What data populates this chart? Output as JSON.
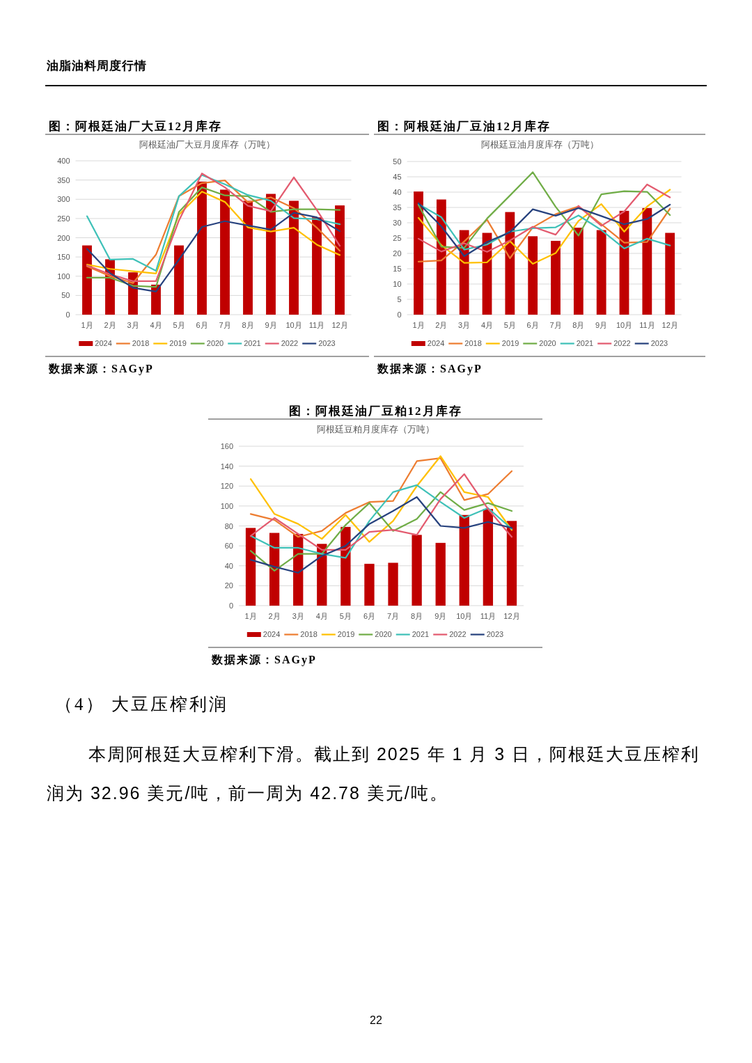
{
  "chart_data": [
    {
      "type": "other",
      "annotations": [
        "油脂油料周度行情"
      ]
    },
    {
      "type": "bar",
      "title": "图：阿根廷油厂大豆12月库存",
      "subtitle": "阿根廷油厂大豆月度库存（万吨）",
      "categories": [
        "1月",
        "2月",
        "3月",
        "4月",
        "5月",
        "6月",
        "7月",
        "8月",
        "9月",
        "10月",
        "11月",
        "12月"
      ],
      "series": [
        {
          "name": "2024",
          "color": "#c00000",
          "values": [
            180,
            144,
            110,
            78,
            180,
            346,
            325,
            296,
            314,
            296,
            253,
            284
          ]
        },
        {
          "name": "2018",
          "type": "line",
          "color": "#ed7d31",
          "values": [
            126,
            100,
            82,
            156,
            308,
            342,
            349,
            292,
            305,
            277,
            226,
            166
          ]
        },
        {
          "name": "2019",
          "type": "line",
          "color": "#ffc000",
          "values": [
            130,
            119,
            113,
            107,
            260,
            320,
            293,
            227,
            216,
            226,
            182,
            155
          ]
        },
        {
          "name": "2020",
          "type": "line",
          "color": "#70ad47",
          "values": [
            96,
            96,
            75,
            72,
            267,
            331,
            310,
            308,
            267,
            274,
            274,
            272
          ]
        },
        {
          "name": "2021",
          "type": "line",
          "color": "#3fc1b8",
          "values": [
            256,
            143,
            145,
            114,
            308,
            363,
            339,
            311,
            296,
            251,
            248,
            235
          ]
        },
        {
          "name": "2022",
          "type": "line",
          "color": "#e35b6f",
          "values": [
            128,
            105,
            87,
            87,
            245,
            367,
            331,
            283,
            269,
            357,
            272,
            179
          ]
        },
        {
          "name": "2023",
          "type": "line",
          "color": "#27427e",
          "values": [
            171,
            108,
            70,
            60,
            143,
            228,
            243,
            232,
            221,
            265,
            253,
            217
          ]
        }
      ],
      "ylim": [
        0,
        400
      ],
      "yticks": [
        0,
        50,
        100,
        150,
        200,
        250,
        300,
        350,
        400
      ],
      "grid": "y",
      "legend": "bottom",
      "annotations": [
        "数据来源：SAGyP"
      ]
    },
    {
      "type": "bar",
      "title": "图：阿根廷油厂豆油12月库存",
      "subtitle": "阿根廷豆油月度库存（万吨）",
      "categories": [
        "1月",
        "2月",
        "3月",
        "4月",
        "5月",
        "6月",
        "7月",
        "8月",
        "9月",
        "10月",
        "11月",
        "12月"
      ],
      "series": [
        {
          "name": "2024",
          "color": "#c00000",
          "values": [
            40.2,
            37.6,
            27.6,
            26.7,
            33.5,
            25.6,
            24.1,
            28.4,
            27.6,
            33.9,
            34.8,
            26.7
          ]
        },
        {
          "name": "2018",
          "type": "line",
          "color": "#ed7d31",
          "values": [
            17.3,
            17.7,
            23.9,
            31.0,
            18.4,
            28.5,
            32.8,
            35.3,
            29.5,
            23.5,
            23.7,
            34.6
          ]
        },
        {
          "name": "2019",
          "type": "line",
          "color": "#ffc000",
          "values": [
            31.6,
            22.7,
            16.9,
            17.1,
            24.0,
            16.6,
            20.1,
            30.6,
            36.1,
            27.1,
            35.3,
            40.8
          ]
        },
        {
          "name": "2020",
          "type": "line",
          "color": "#70ad47",
          "values": [
            35.8,
            22.2,
            21.8,
            31.4,
            38.9,
            46.5,
            35.2,
            25.8,
            39.3,
            40.3,
            40.1,
            32.5
          ]
        },
        {
          "name": "2021",
          "type": "line",
          "color": "#3fc1b8",
          "values": [
            36.1,
            31.8,
            21.2,
            22.9,
            27.1,
            28.2,
            28.5,
            32.4,
            27.6,
            21.6,
            24.8,
            22.6
          ]
        },
        {
          "name": "2022",
          "type": "line",
          "color": "#e35b6f",
          "values": [
            24.8,
            20.6,
            23.3,
            20.5,
            24.2,
            28.7,
            26.1,
            35.5,
            29.0,
            33.7,
            42.5,
            38.3
          ]
        },
        {
          "name": "2023",
          "type": "line",
          "color": "#27427e",
          "values": [
            36.4,
            28.8,
            19.1,
            23.7,
            26.9,
            34.4,
            32.3,
            34.8,
            32.2,
            29.5,
            31.2,
            35.9
          ]
        }
      ],
      "ylim": [
        0,
        50
      ],
      "yticks": [
        0,
        5,
        10,
        15,
        20,
        25,
        30,
        35,
        40,
        45,
        50
      ],
      "grid": "y",
      "legend": "bottom",
      "annotations": [
        "数据来源：SAGyP"
      ]
    },
    {
      "type": "bar",
      "title": "图：阿根廷油厂豆粕12月库存",
      "subtitle": "阿根廷豆粕月度库存（万吨）",
      "categories": [
        "1月",
        "2月",
        "3月",
        "4月",
        "5月",
        "6月",
        "7月",
        "8月",
        "9月",
        "10月",
        "11月",
        "12月"
      ],
      "series": [
        {
          "name": "2024",
          "color": "#c00000",
          "values": [
            78,
            73,
            72,
            62,
            79,
            42,
            43,
            71,
            63,
            91,
            97,
            85
          ]
        },
        {
          "name": "2018",
          "type": "line",
          "color": "#ed7d31",
          "values": [
            92,
            86,
            69,
            75,
            93,
            104,
            105,
            145,
            148,
            106,
            112,
            135
          ]
        },
        {
          "name": "2019",
          "type": "line",
          "color": "#ffc000",
          "values": [
            127,
            92,
            82,
            67,
            91,
            64,
            85,
            120,
            150,
            114,
            109,
            76
          ]
        },
        {
          "name": "2020",
          "type": "line",
          "color": "#70ad47",
          "values": [
            55,
            35,
            52,
            52,
            81,
            103,
            75,
            87,
            114,
            96,
            103,
            95
          ]
        },
        {
          "name": "2021",
          "type": "line",
          "color": "#3fc1b8",
          "values": [
            70,
            58,
            58,
            52,
            48,
            85,
            114,
            121,
            104,
            88,
            98,
            77
          ]
        },
        {
          "name": "2022",
          "type": "line",
          "color": "#e35b6f",
          "values": [
            70,
            88,
            72,
            56,
            56,
            74,
            76,
            71,
            107,
            132,
            97,
            69
          ]
        },
        {
          "name": "2023",
          "type": "line",
          "color": "#27427e",
          "values": [
            46,
            39,
            33,
            50,
            60,
            82,
            95,
            109,
            80,
            78,
            84,
            78
          ]
        }
      ],
      "ylim": [
        0,
        160
      ],
      "yticks": [
        0,
        20,
        40,
        60,
        80,
        100,
        120,
        140,
        160
      ],
      "grid": "y",
      "legend": "bottom",
      "annotations": [
        "数据来源：SAGyP"
      ]
    },
    {
      "type": "other",
      "annotations": [
        "（4） 大豆压榨利润",
        "本周阿根廷大豆榨利下滑。截止到 2025 年 1 月 3 日，阿根廷大豆压榨利润为 32.96 美元/吨，前一周为 42.78 美元/吨。",
        "22"
      ]
    }
  ]
}
